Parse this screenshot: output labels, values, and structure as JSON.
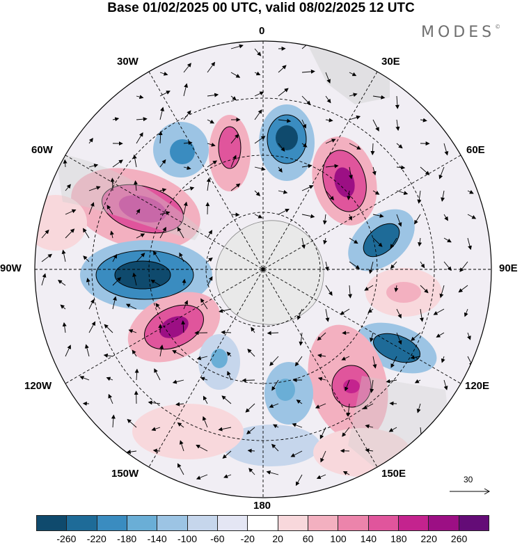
{
  "title": "Base 01/02/2025 00 UTC, valid 08/02/2025 12 UTC",
  "logo": "MODES",
  "logo_mark": "©",
  "longitude_labels": {
    "lon_0": "0",
    "lon_30e": "30E",
    "lon_60e": "60E",
    "lon_90e": "90E",
    "lon_120e": "120E",
    "lon_150e": "150E",
    "lon_180": "180",
    "lon_150w": "150W",
    "lon_120w": "120W",
    "lon_90w": "90W",
    "lon_60w": "60W",
    "lon_30w": "30W"
  },
  "reference_vector": "30",
  "colorbar": {
    "colors": [
      "#0f4a6d",
      "#1e6b98",
      "#3a8cc0",
      "#6aaed6",
      "#9cc4e4",
      "#c6d6ec",
      "#e4e6f4",
      "#ffffff",
      "#f8d8dc",
      "#f3b0c0",
      "#ec84ab",
      "#e0559c",
      "#c4238e",
      "#9c0f84",
      "#640c77"
    ],
    "tick_labels": [
      "-260",
      "-220",
      "-180",
      "-140",
      "-100",
      "-60",
      "-20",
      "20",
      "60",
      "100",
      "140",
      "180",
      "220",
      "260"
    ]
  }
}
